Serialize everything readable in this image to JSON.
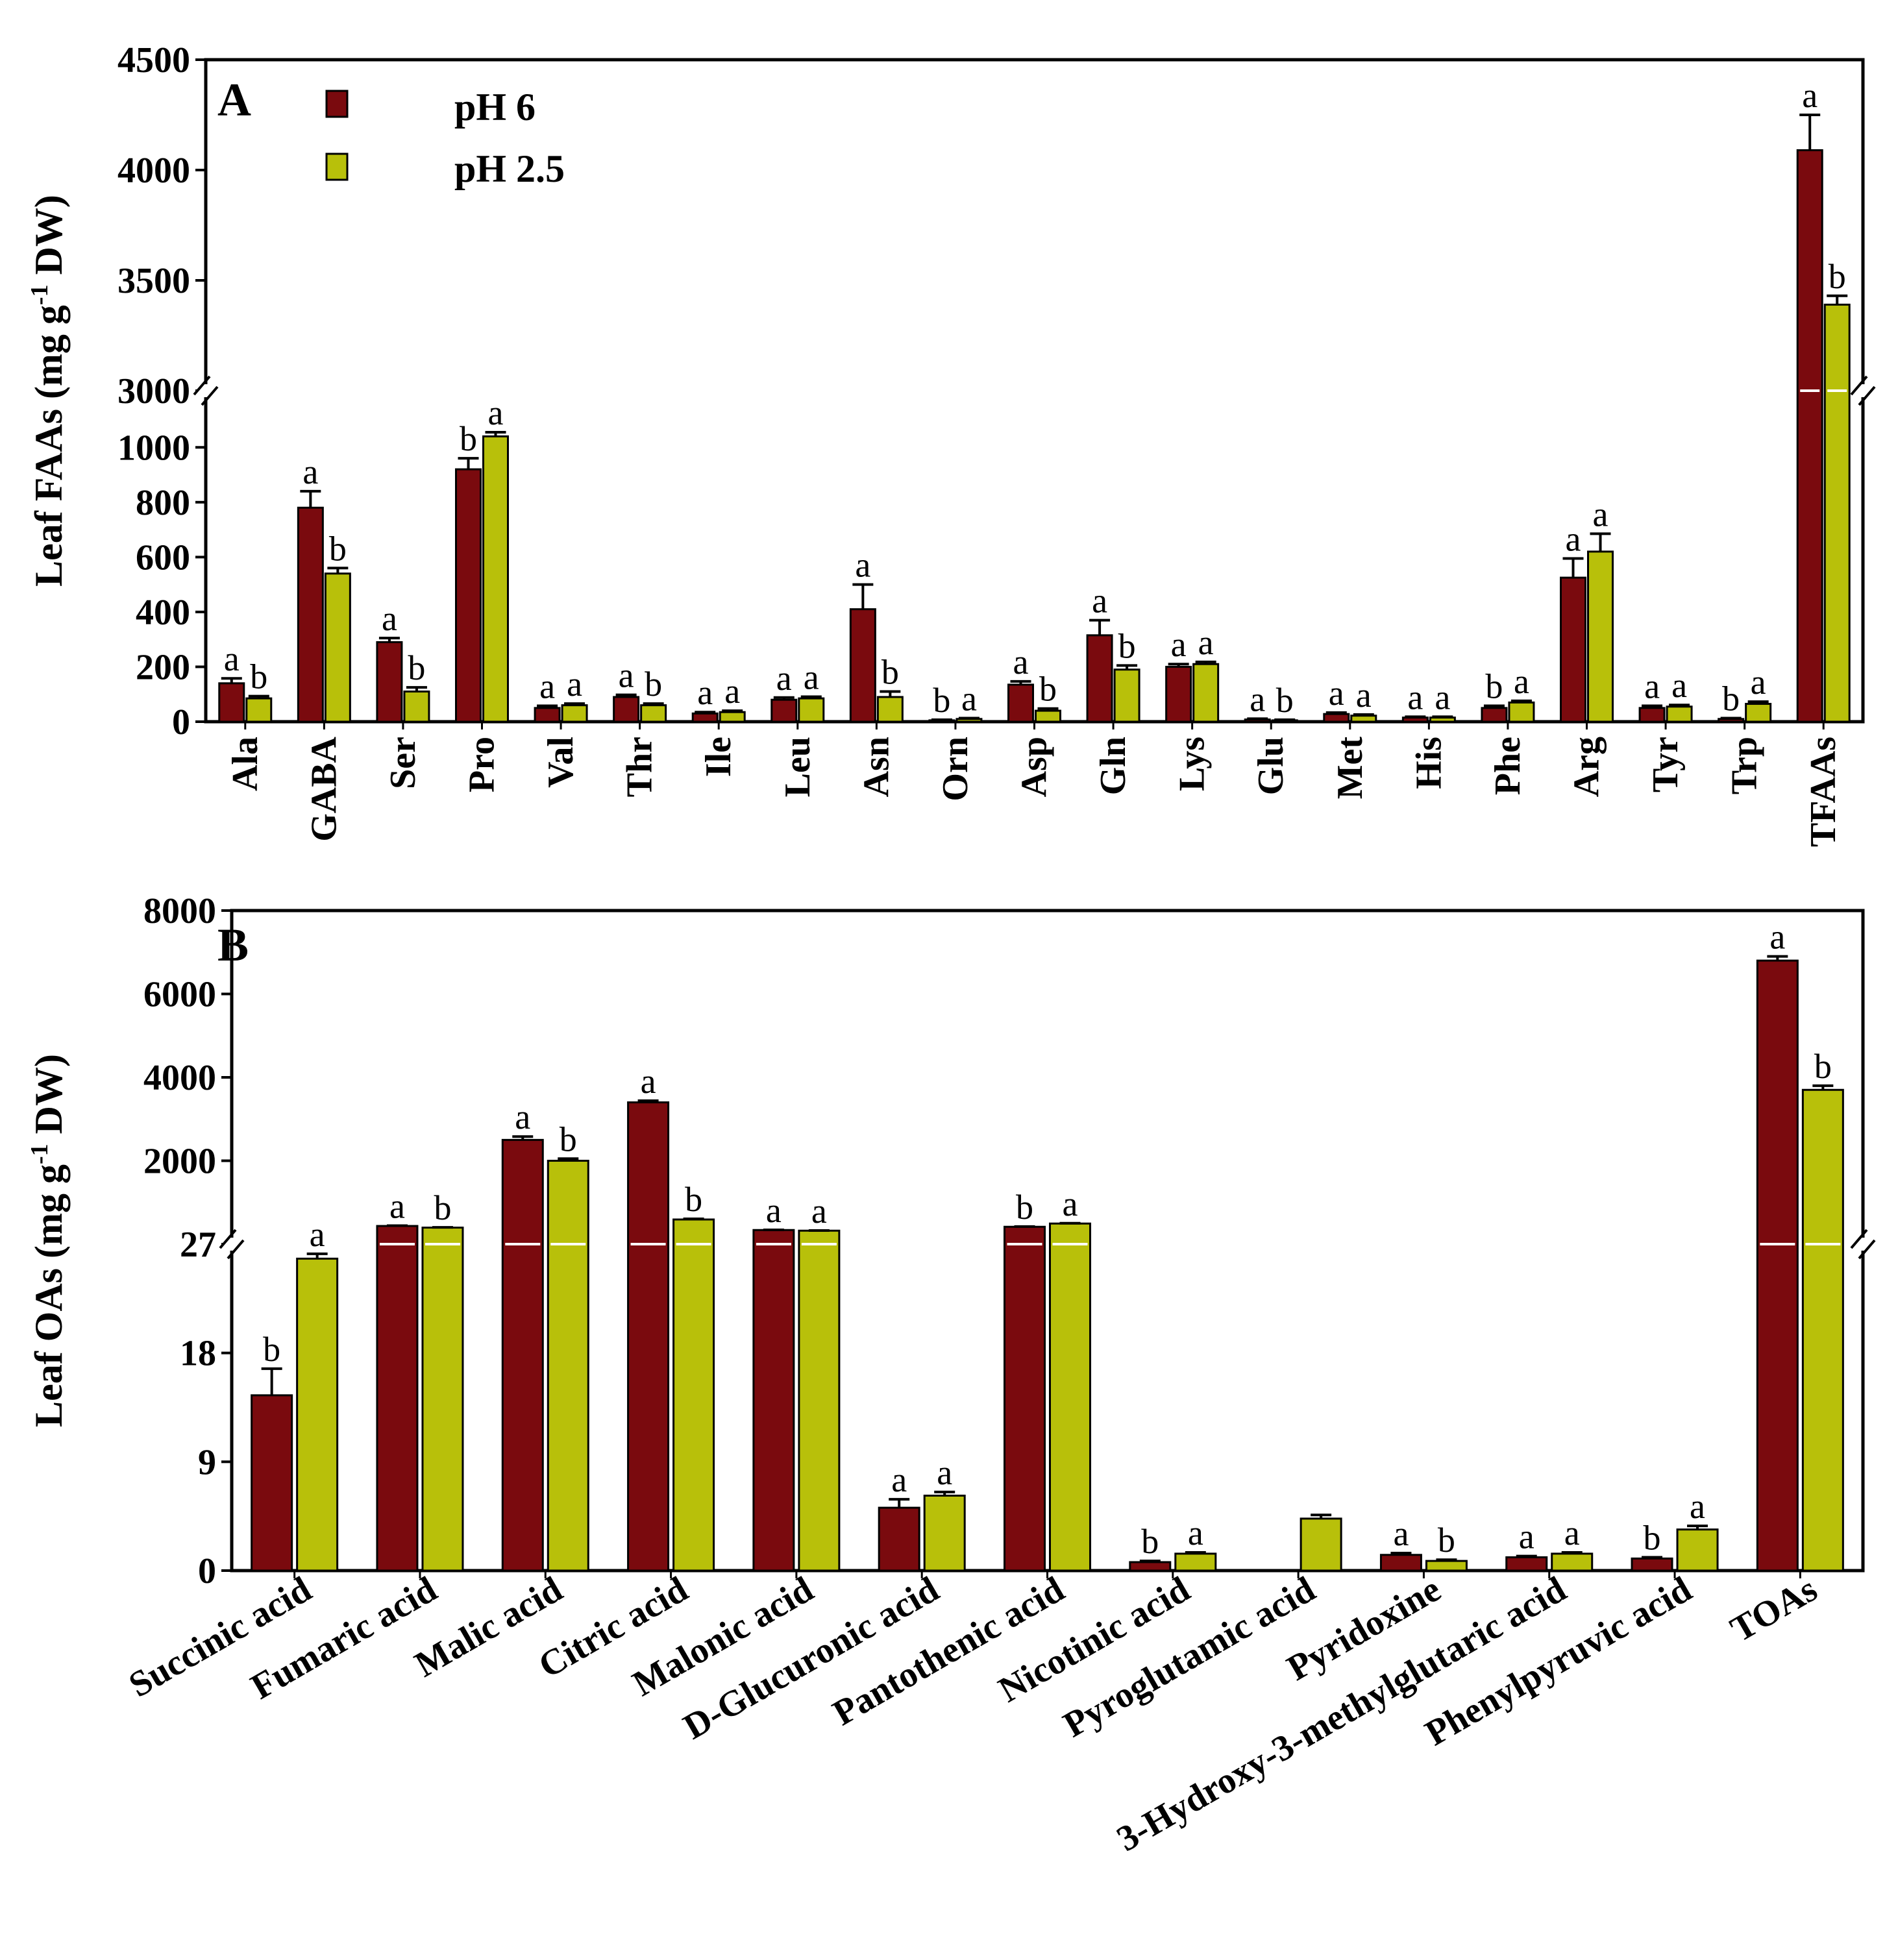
{
  "legend": {
    "series1_label": "pH 6",
    "series2_label": "pH 2.5"
  },
  "colors": {
    "series1": "#7a0a0e",
    "series2": "#b8c00a",
    "frame": "#000000",
    "break_line": "#ffffff"
  },
  "chart_data": [
    {
      "type": "bar",
      "panel_label": "A",
      "ylabel_main": "Leaf FAAs (mg g",
      "ylabel_sup": "-1",
      "ylabel_tail": " DW)",
      "broken_axis": true,
      "lower_ylim": [
        0,
        1100
      ],
      "lower_ticks": [
        0,
        200,
        400,
        600,
        800,
        1000
      ],
      "upper_ylim": [
        3000,
        4500
      ],
      "upper_ticks": [
        3000,
        3500,
        4000,
        4500
      ],
      "legend_position": "top-left",
      "grid": false,
      "categories": [
        "Ala",
        "GABA",
        "Ser",
        "Pro",
        "Val",
        "Thr",
        "Ile",
        "Leu",
        "Asn",
        "Orn",
        "Asp",
        "Gln",
        "Lys",
        "Glu",
        "Met",
        "His",
        "Phe",
        "Arg",
        "Tyr",
        "Trp",
        "TFAAs"
      ],
      "series": [
        {
          "name": "pH 6",
          "values": [
            140,
            780,
            290,
            920,
            50,
            90,
            30,
            80,
            410,
            5,
            135,
            315,
            200,
            8,
            28,
            15,
            50,
            525,
            50,
            10,
            4090
          ],
          "errors": [
            18,
            60,
            15,
            40,
            8,
            8,
            5,
            8,
            90,
            2,
            12,
            55,
            10,
            3,
            5,
            3,
            8,
            70,
            8,
            3,
            160
          ],
          "letters": [
            "a",
            "a",
            "a",
            "b",
            "a",
            "a",
            "a",
            "a",
            "a",
            "b",
            "a",
            "a",
            "a",
            "a",
            "a",
            "a",
            "b",
            "a",
            "a",
            "b",
            "a"
          ]
        },
        {
          "name": "pH 2.5",
          "values": [
            85,
            540,
            110,
            1040,
            60,
            60,
            35,
            85,
            90,
            10,
            40,
            190,
            210,
            5,
            22,
            15,
            70,
            620,
            55,
            65,
            3390
          ],
          "errors": [
            8,
            20,
            15,
            15,
            6,
            6,
            5,
            6,
            20,
            3,
            8,
            15,
            8,
            2,
            4,
            3,
            6,
            65,
            6,
            8,
            40
          ],
          "letters": [
            "b",
            "b",
            "b",
            "a",
            "a",
            "b",
            "a",
            "a",
            "b",
            "a",
            "b",
            "b",
            "a",
            "b",
            "a",
            "a",
            "a",
            "a",
            "a",
            "a",
            "b"
          ]
        }
      ]
    },
    {
      "type": "bar",
      "panel_label": "B",
      "ylabel_main": "Leaf OAs (mg g",
      "ylabel_sup": "-1",
      "ylabel_tail": " DW)",
      "broken_axis": true,
      "lower_ylim": [
        0,
        27
      ],
      "lower_ticks": [
        0,
        9,
        18,
        27
      ],
      "upper_ylim": [
        0,
        8000
      ],
      "upper_ticks": [
        2000,
        4000,
        6000,
        8000
      ],
      "legend_position": "none",
      "grid": false,
      "categories": [
        "Succinic acid",
        "Fumaric acid",
        "Malic acid",
        "Citric acid",
        "Malonic acid",
        "D-Glucuronic acid",
        "Pantothenic acid",
        "Nicotinic acid",
        "Pyroglutamic acid",
        "Pyridoxine",
        "3-Hydroxy-3-methylglutaric acid",
        "Phenylpyruvic acid",
        "TOAs"
      ],
      "series": [
        {
          "name": "pH 6",
          "values": [
            14.5,
            400,
            2500,
            3400,
            150,
            5.2,
            350,
            0.7,
            0,
            1.3,
            1.1,
            1.0,
            6800
          ],
          "errors": [
            2.2,
            20,
            80,
            40,
            10,
            0.7,
            15,
            0.1,
            0,
            0.15,
            0.1,
            0.1,
            100
          ],
          "letters": [
            "b",
            "a",
            "a",
            "a",
            "a",
            "a",
            "b",
            "b",
            "",
            "a",
            "a",
            "b",
            "a"
          ]
        },
        {
          "name": "pH 2.5",
          "values": [
            25.8,
            300,
            2000,
            800,
            110,
            6.2,
            550,
            1.4,
            4.3,
            0.8,
            1.4,
            3.4,
            3700
          ],
          "errors": [
            0.4,
            15,
            50,
            40,
            10,
            0.3,
            20,
            0.1,
            0.3,
            0.1,
            0.1,
            0.3,
            100
          ],
          "letters": [
            "a",
            "b",
            "b",
            "b",
            "a",
            "a",
            "a",
            "a",
            "",
            "b",
            "a",
            "a",
            "b"
          ]
        }
      ]
    }
  ]
}
